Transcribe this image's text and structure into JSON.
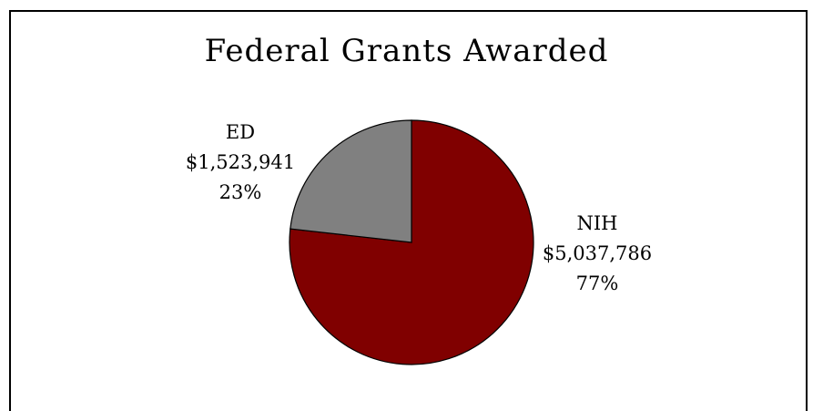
{
  "chart_data": {
    "type": "pie",
    "title": "Federal Grants Awarded",
    "slices": [
      {
        "name": "NIH",
        "amount_label": "$5,037,786",
        "percent_label": "77%",
        "value": 5037786,
        "color": "#800000"
      },
      {
        "name": "ED",
        "amount_label": "$1,523,941",
        "percent_label": "23%",
        "value": 1523941,
        "color": "#808080"
      }
    ],
    "start_angle_deg": 0,
    "direction": "clockwise"
  }
}
